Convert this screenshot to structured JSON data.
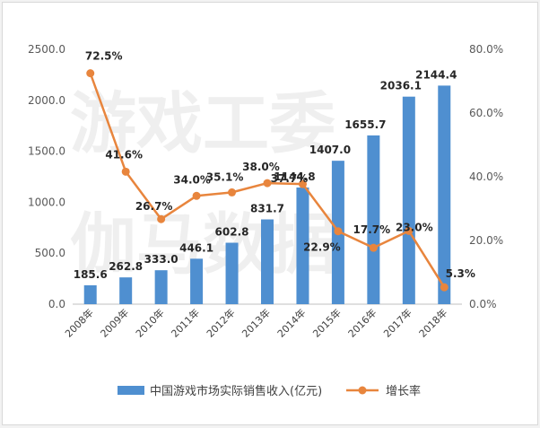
{
  "watermark": {
    "line1": "游戏工委",
    "line2": "伽马数据"
  },
  "chart_data": {
    "type": "bar",
    "title": "",
    "categories": [
      "2008年",
      "2009年",
      "2010年",
      "2011年",
      "2012年",
      "2013年",
      "2014年",
      "2015年",
      "2016年",
      "2017年",
      "2018年"
    ],
    "series": [
      {
        "name": "中国游戏市场实际销售收入(亿元)",
        "type": "bar",
        "axis": "left",
        "color": "#4f8fd0",
        "values": [
          185.6,
          262.8,
          333.0,
          446.1,
          602.8,
          831.7,
          1144.8,
          1407.0,
          1655.7,
          2036.1,
          2144.4
        ],
        "labels": [
          "185.6",
          "262.8",
          "333.0",
          "446.1",
          "602.8",
          "831.7",
          "1144.8",
          "1407.0",
          "1655.7",
          "2036.1",
          "2144.4"
        ]
      },
      {
        "name": "增长率",
        "type": "line",
        "axis": "right",
        "color": "#e8853d",
        "values": [
          72.5,
          41.6,
          26.7,
          34.0,
          35.1,
          38.0,
          37.7,
          22.9,
          17.7,
          23.0,
          5.3
        ],
        "labels": [
          "72.5%",
          "41.6%",
          "26.7%",
          "34.0%",
          "35.1%",
          "38.0%",
          "37.7%",
          "22.9%",
          "17.7%",
          "23.0%",
          "5.3%"
        ]
      }
    ],
    "y_left": {
      "lim": [
        0,
        2500
      ],
      "ticks": [
        "0.0",
        "500.0",
        "1000.0",
        "1500.0",
        "2000.0",
        "2500.0"
      ]
    },
    "y_right": {
      "lim": [
        0,
        80
      ],
      "ticks": [
        "0.0%",
        "20.0%",
        "40.0%",
        "60.0%",
        "80.0%"
      ]
    },
    "grid": false,
    "legend": "bottom"
  }
}
